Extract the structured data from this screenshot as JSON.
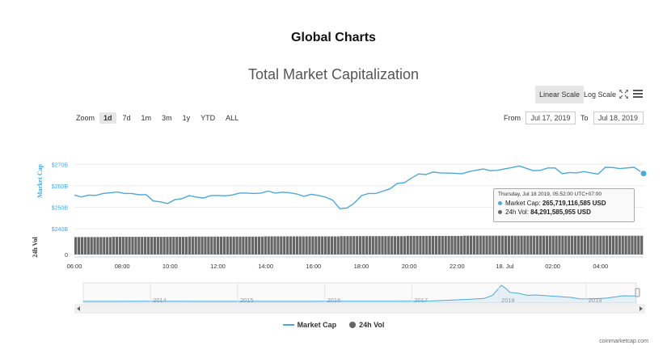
{
  "page": {
    "title": "Global Charts",
    "credit": "coinmarketcap.com"
  },
  "toolbar": {
    "linear_label": "Linear Scale",
    "log_label": "Log Scale",
    "fullscreen_icon": "fullscreen-icon",
    "menu_icon": "hamburger-menu-icon"
  },
  "zoom": {
    "label": "Zoom",
    "options": [
      "1d",
      "7d",
      "1m",
      "3m",
      "1y",
      "YTD",
      "ALL"
    ],
    "selected": "1d"
  },
  "range": {
    "from_label": "From",
    "from_value": "Jul 17, 2019",
    "to_label": "To",
    "to_value": "Jul 18, 2019"
  },
  "tooltip": {
    "header": "Thursday, Jul 18 2019, 05:52:00 UTC+07:00",
    "mcap_label": "Market Cap:",
    "mcap_value": "265,719,116,585 USD",
    "vol_label": "24h Vol:",
    "vol_value": "84,291,585,955 USD"
  },
  "colors": {
    "market_cap": "#4aa9df",
    "volume": "#666666",
    "navigator": "#4aa9df"
  },
  "chart_data": {
    "type": "line",
    "title": "Total Market Capitalization",
    "ylabel": "Market Cap",
    "ylabel2": "24h Vol",
    "ylim": [
      240,
      275
    ],
    "y_ticks": [
      "$270B",
      "$260B",
      "$250B",
      "$240B"
    ],
    "vol_tick": "0",
    "x_ticks": [
      "06:00",
      "08:00",
      "10:00",
      "12:00",
      "14:00",
      "16:00",
      "18:00",
      "20:00",
      "22:00",
      "18. Jul",
      "02:00",
      "04:00"
    ],
    "x_range_hours": [
      0,
      23.8
    ],
    "series": [
      {
        "name": "Market Cap",
        "x": [
          0,
          0.3,
          0.6,
          0.9,
          1.2,
          1.5,
          1.8,
          2.1,
          2.4,
          2.7,
          3.0,
          3.3,
          3.6,
          3.9,
          4.2,
          4.5,
          4.8,
          5.1,
          5.4,
          5.7,
          6.0,
          6.3,
          6.6,
          6.9,
          7.2,
          7.5,
          7.8,
          8.1,
          8.4,
          8.7,
          9.0,
          9.3,
          9.6,
          9.9,
          10.2,
          10.5,
          10.8,
          11.1,
          11.4,
          11.7,
          12.0,
          12.3,
          12.6,
          12.9,
          13.2,
          13.5,
          13.8,
          14.1,
          14.4,
          14.7,
          15.0,
          15.3,
          15.6,
          15.9,
          16.2,
          16.5,
          16.8,
          17.1,
          17.4,
          17.7,
          18.0,
          18.3,
          18.6,
          18.9,
          19.2,
          19.5,
          19.8,
          20.1,
          20.4,
          20.7,
          21.0,
          21.3,
          21.6,
          21.9,
          22.2,
          22.5,
          22.8,
          23.1,
          23.4,
          23.8
        ],
        "values": [
          255.6,
          254.8,
          255.6,
          255.5,
          256.4,
          256.7,
          257.1,
          256.4,
          256.4,
          255.8,
          255.9,
          252.9,
          252.5,
          251.7,
          253.5,
          254.0,
          255.4,
          254.7,
          254.3,
          255.4,
          255.5,
          255.3,
          255.7,
          256.6,
          256.6,
          256.4,
          256.6,
          257.5,
          256.6,
          257.0,
          256.7,
          256.2,
          255.1,
          256.0,
          255.5,
          254.7,
          253.3,
          249.3,
          249.6,
          251.9,
          255.4,
          256.4,
          256.4,
          257.5,
          258.6,
          261.1,
          261.4,
          263.6,
          265.5,
          265.2,
          266.4,
          266.0,
          265.9,
          265.8,
          265.6,
          266.6,
          267.2,
          267.8,
          267.0,
          267.2,
          267.9,
          268.5,
          269.2,
          268.1,
          267.0,
          267.2,
          268.3,
          268.3,
          265.6,
          266.2,
          266.0,
          266.6,
          266.0,
          265.4,
          268.6,
          268.5,
          268.0,
          268.3,
          268.6,
          265.7
        ]
      },
      {
        "name": "24h Vol",
        "values_billion_usd": [
          78,
          78,
          78,
          78,
          79,
          79,
          79,
          79,
          79,
          79,
          79,
          79,
          80,
          80,
          80,
          80,
          80,
          80,
          80,
          80,
          81,
          81,
          81,
          81,
          81,
          81,
          81,
          81,
          82,
          82,
          82,
          82,
          82,
          82,
          82,
          83,
          83,
          83,
          83,
          83,
          83,
          84,
          84,
          84,
          84,
          84,
          84,
          84,
          84,
          84,
          84,
          84,
          84,
          84,
          84,
          84,
          84,
          84,
          84,
          84
        ]
      }
    ],
    "navigator": {
      "x_ticks": [
        "2014",
        "2015",
        "2016",
        "2017",
        "2018",
        "2019"
      ],
      "x_range_years": [
        2013.2,
        2019.55
      ],
      "x": [
        2013.2,
        2014.0,
        2015.0,
        2016.0,
        2016.8,
        2017.0,
        2017.2,
        2017.4,
        2017.6,
        2017.8,
        2017.9,
        2018.0,
        2018.05,
        2018.1,
        2018.2,
        2018.3,
        2018.4,
        2018.6,
        2018.8,
        2018.9,
        2019.0,
        2019.2,
        2019.4,
        2019.55
      ],
      "values": [
        2,
        10,
        5,
        7,
        14,
        18,
        25,
        60,
        100,
        150,
        300,
        800,
        650,
        450,
        400,
        300,
        320,
        260,
        200,
        130,
        125,
        160,
        280,
        265
      ]
    }
  }
}
